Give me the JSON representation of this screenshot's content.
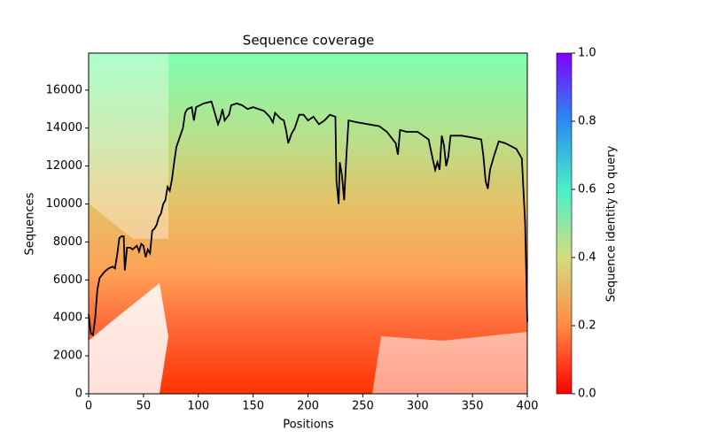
{
  "chart_data": {
    "type": "line",
    "title": "Sequence coverage",
    "x_label": "Positions",
    "y_label": "Sequences",
    "x": [
      0,
      2,
      4,
      6,
      8,
      10,
      14,
      18,
      22,
      24,
      26,
      28,
      30,
      32,
      33,
      35,
      38,
      40,
      44,
      46,
      48,
      50,
      52,
      54,
      56,
      58,
      60,
      62,
      64,
      66,
      68,
      70,
      72,
      74,
      76,
      78,
      80,
      83,
      86,
      88,
      90,
      94,
      96,
      98,
      105,
      112,
      115,
      118,
      120,
      122,
      124,
      128,
      130,
      135,
      140,
      145,
      150,
      160,
      165,
      168,
      170,
      175,
      178,
      180,
      182,
      185,
      188,
      192,
      196,
      200,
      205,
      210,
      215,
      220,
      225,
      226,
      228,
      229,
      231,
      233,
      235,
      237,
      245,
      255,
      265,
      272,
      276,
      280,
      282,
      284,
      290,
      300,
      305,
      310,
      314,
      316,
      318,
      320,
      322,
      324,
      326,
      328,
      330,
      340,
      350,
      358,
      360,
      362,
      364,
      366,
      370,
      374,
      380,
      390,
      395,
      398,
      400
    ],
    "values": [
      4200,
      3200,
      3100,
      4000,
      5500,
      6100,
      6400,
      6600,
      6700,
      6600,
      7300,
      8200,
      8300,
      8300,
      6500,
      7700,
      7700,
      7600,
      7800,
      7500,
      7900,
      7800,
      7200,
      7600,
      7400,
      8600,
      8700,
      8900,
      9300,
      9500,
      10000,
      10200,
      10900,
      10700,
      11300,
      12200,
      13000,
      13500,
      14000,
      14800,
      15000,
      15100,
      14400,
      15100,
      15300,
      15400,
      14800,
      14200,
      14500,
      15000,
      14400,
      14700,
      15200,
      15300,
      15200,
      15000,
      15100,
      14900,
      14600,
      14300,
      14800,
      14500,
      14400,
      13900,
      13200,
      13700,
      14000,
      14700,
      14700,
      14400,
      14600,
      14200,
      14400,
      14700,
      14600,
      11200,
      10000,
      12200,
      11500,
      10200,
      12500,
      14400,
      14300,
      14200,
      14100,
      13800,
      13500,
      13200,
      12600,
      13900,
      13800,
      13800,
      13600,
      13400,
      12300,
      11800,
      12200,
      11800,
      13600,
      13100,
      12000,
      12500,
      13600,
      13600,
      13500,
      13400,
      12500,
      11200,
      10800,
      11800,
      12600,
      13300,
      13200,
      12900,
      12400,
      9000,
      3800
    ],
    "color": "#000000",
    "xlim": [
      0,
      400
    ],
    "xticks": [
      0,
      50,
      100,
      150,
      200,
      250,
      300,
      350,
      400
    ],
    "ylim": [
      0,
      17950
    ],
    "yticks": [
      0,
      2000,
      4000,
      6000,
      8000,
      10000,
      12000,
      14000,
      16000
    ],
    "colorbar": {
      "label": "Sequence identity to query",
      "lim": [
        0,
        1
      ],
      "ticks": [
        {
          "value": 0,
          "label": "0.0"
        },
        0.2,
        0.4,
        0.6,
        0.8,
        {
          "value": 1,
          "label": "1.0"
        }
      ]
    }
  }
}
